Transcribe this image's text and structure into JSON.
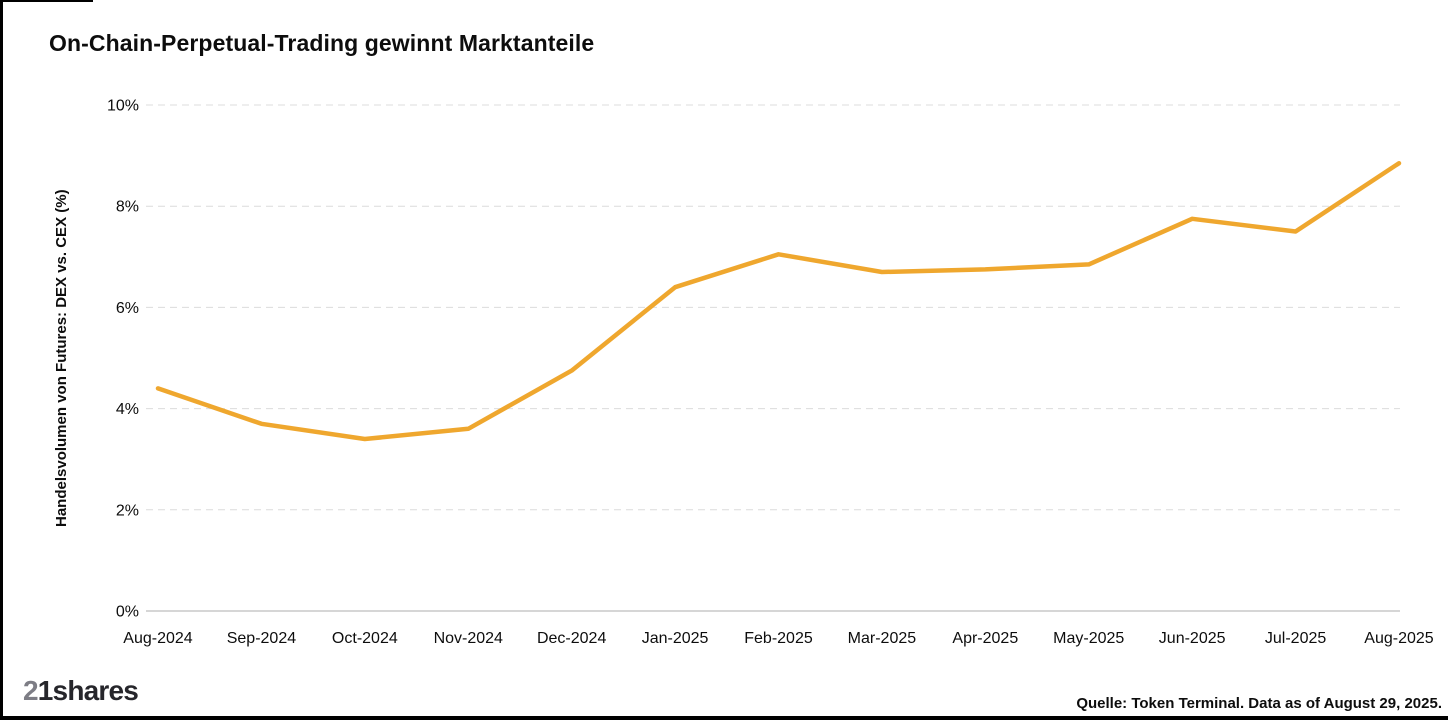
{
  "chart_data": {
    "type": "line",
    "title": "On-Chain-Perpetual-Trading gewinnt Marktanteile",
    "xlabel": "",
    "ylabel": "Handelsvolumen von Futures: DEX vs. CEX (%)",
    "categories": [
      "Aug-2024",
      "Sep-2024",
      "Oct-2024",
      "Nov-2024",
      "Dec-2024",
      "Jan-2025",
      "Feb-2025",
      "Mar-2025",
      "Apr-2025",
      "May-2025",
      "Jun-2025",
      "Jul-2025",
      "Aug-2025"
    ],
    "values": [
      4.4,
      3.7,
      3.4,
      3.6,
      4.75,
      6.4,
      7.05,
      6.7,
      6.75,
      6.85,
      7.75,
      7.5,
      8.85
    ],
    "ylim": [
      0,
      10
    ],
    "y_ticks": [
      0,
      2,
      4,
      6,
      8,
      10
    ],
    "y_tick_labels": [
      "0%",
      "2%",
      "4%",
      "6%",
      "8%",
      "10%"
    ],
    "grid": "horizontal-dashed",
    "legend": "none",
    "line_color": "#EFA72E"
  },
  "footer": {
    "logo_part_gray": "2",
    "logo_part_dark": "1shares",
    "source": "Quelle: Token Terminal. Data as of August 29, 2025."
  },
  "colors": {
    "line": "#EFA72E",
    "gridline": "#DCDCDC",
    "zero_line": "#C8C8C8",
    "text": "#0d0d0d",
    "frame_border": "#000000",
    "background": "#FFFFFF"
  }
}
